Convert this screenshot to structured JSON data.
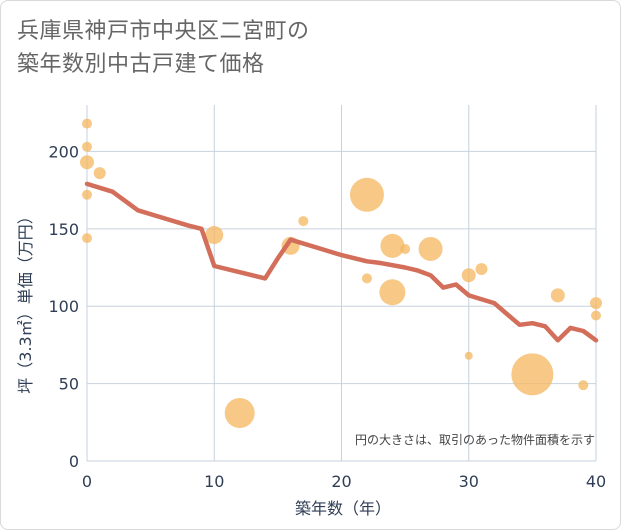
{
  "title_line1": "兵庫県神戸市中央区二宮町の",
  "title_line2": "築年数別中古戸建て価格",
  "note": "円の大きさは、取引のあった物件面積を示す",
  "colors": {
    "line": "#d26e5a",
    "bubble": "#f5b964",
    "grid": "#c6d2de",
    "axis_text": "#2f3e55"
  },
  "chart_data": {
    "type": "scatter",
    "xlabel": "築年数（年）",
    "ylabel": "坪（3.3㎡）単価（万円）",
    "xlim": [
      0,
      40
    ],
    "ylim": [
      0,
      230
    ],
    "x_ticks": [
      0,
      10,
      20,
      30,
      40
    ],
    "y_ticks": [
      0,
      50,
      100,
      150,
      200
    ],
    "bubbles": [
      {
        "x": 0,
        "y": 218,
        "r": 5
      },
      {
        "x": 0,
        "y": 203,
        "r": 5
      },
      {
        "x": 0,
        "y": 193,
        "r": 7
      },
      {
        "x": 0,
        "y": 172,
        "r": 5
      },
      {
        "x": 0,
        "y": 144,
        "r": 5
      },
      {
        "x": 1,
        "y": 186,
        "r": 6
      },
      {
        "x": 10,
        "y": 146,
        "r": 9
      },
      {
        "x": 12,
        "y": 31,
        "r": 15
      },
      {
        "x": 16,
        "y": 139,
        "r": 9
      },
      {
        "x": 17,
        "y": 155,
        "r": 5
      },
      {
        "x": 22,
        "y": 172,
        "r": 17
      },
      {
        "x": 22,
        "y": 118,
        "r": 5
      },
      {
        "x": 24,
        "y": 139,
        "r": 12
      },
      {
        "x": 24,
        "y": 109,
        "r": 13
      },
      {
        "x": 25,
        "y": 137,
        "r": 5
      },
      {
        "x": 27,
        "y": 137,
        "r": 12
      },
      {
        "x": 30,
        "y": 120,
        "r": 7
      },
      {
        "x": 30,
        "y": 68,
        "r": 4
      },
      {
        "x": 31,
        "y": 124,
        "r": 6
      },
      {
        "x": 35,
        "y": 56,
        "r": 21
      },
      {
        "x": 37,
        "y": 107,
        "r": 7
      },
      {
        "x": 39,
        "y": 49,
        "r": 5
      },
      {
        "x": 40,
        "y": 102,
        "r": 6
      },
      {
        "x": 40,
        "y": 94,
        "r": 5
      }
    ],
    "line": {
      "x": [
        0,
        2,
        4,
        6,
        8,
        9,
        10,
        12,
        14,
        15,
        16,
        18,
        20,
        21,
        22,
        23,
        25,
        26,
        27,
        28,
        29,
        30,
        32,
        33,
        34,
        35,
        36,
        37,
        38,
        39,
        40
      ],
      "y": [
        179,
        174,
        162,
        157,
        152,
        150,
        126,
        122,
        118,
        131,
        143,
        138,
        133,
        131,
        129,
        128,
        125,
        123,
        120,
        112,
        114,
        107,
        102,
        95,
        88,
        89,
        87,
        78,
        86,
        84,
        78
      ]
    }
  }
}
